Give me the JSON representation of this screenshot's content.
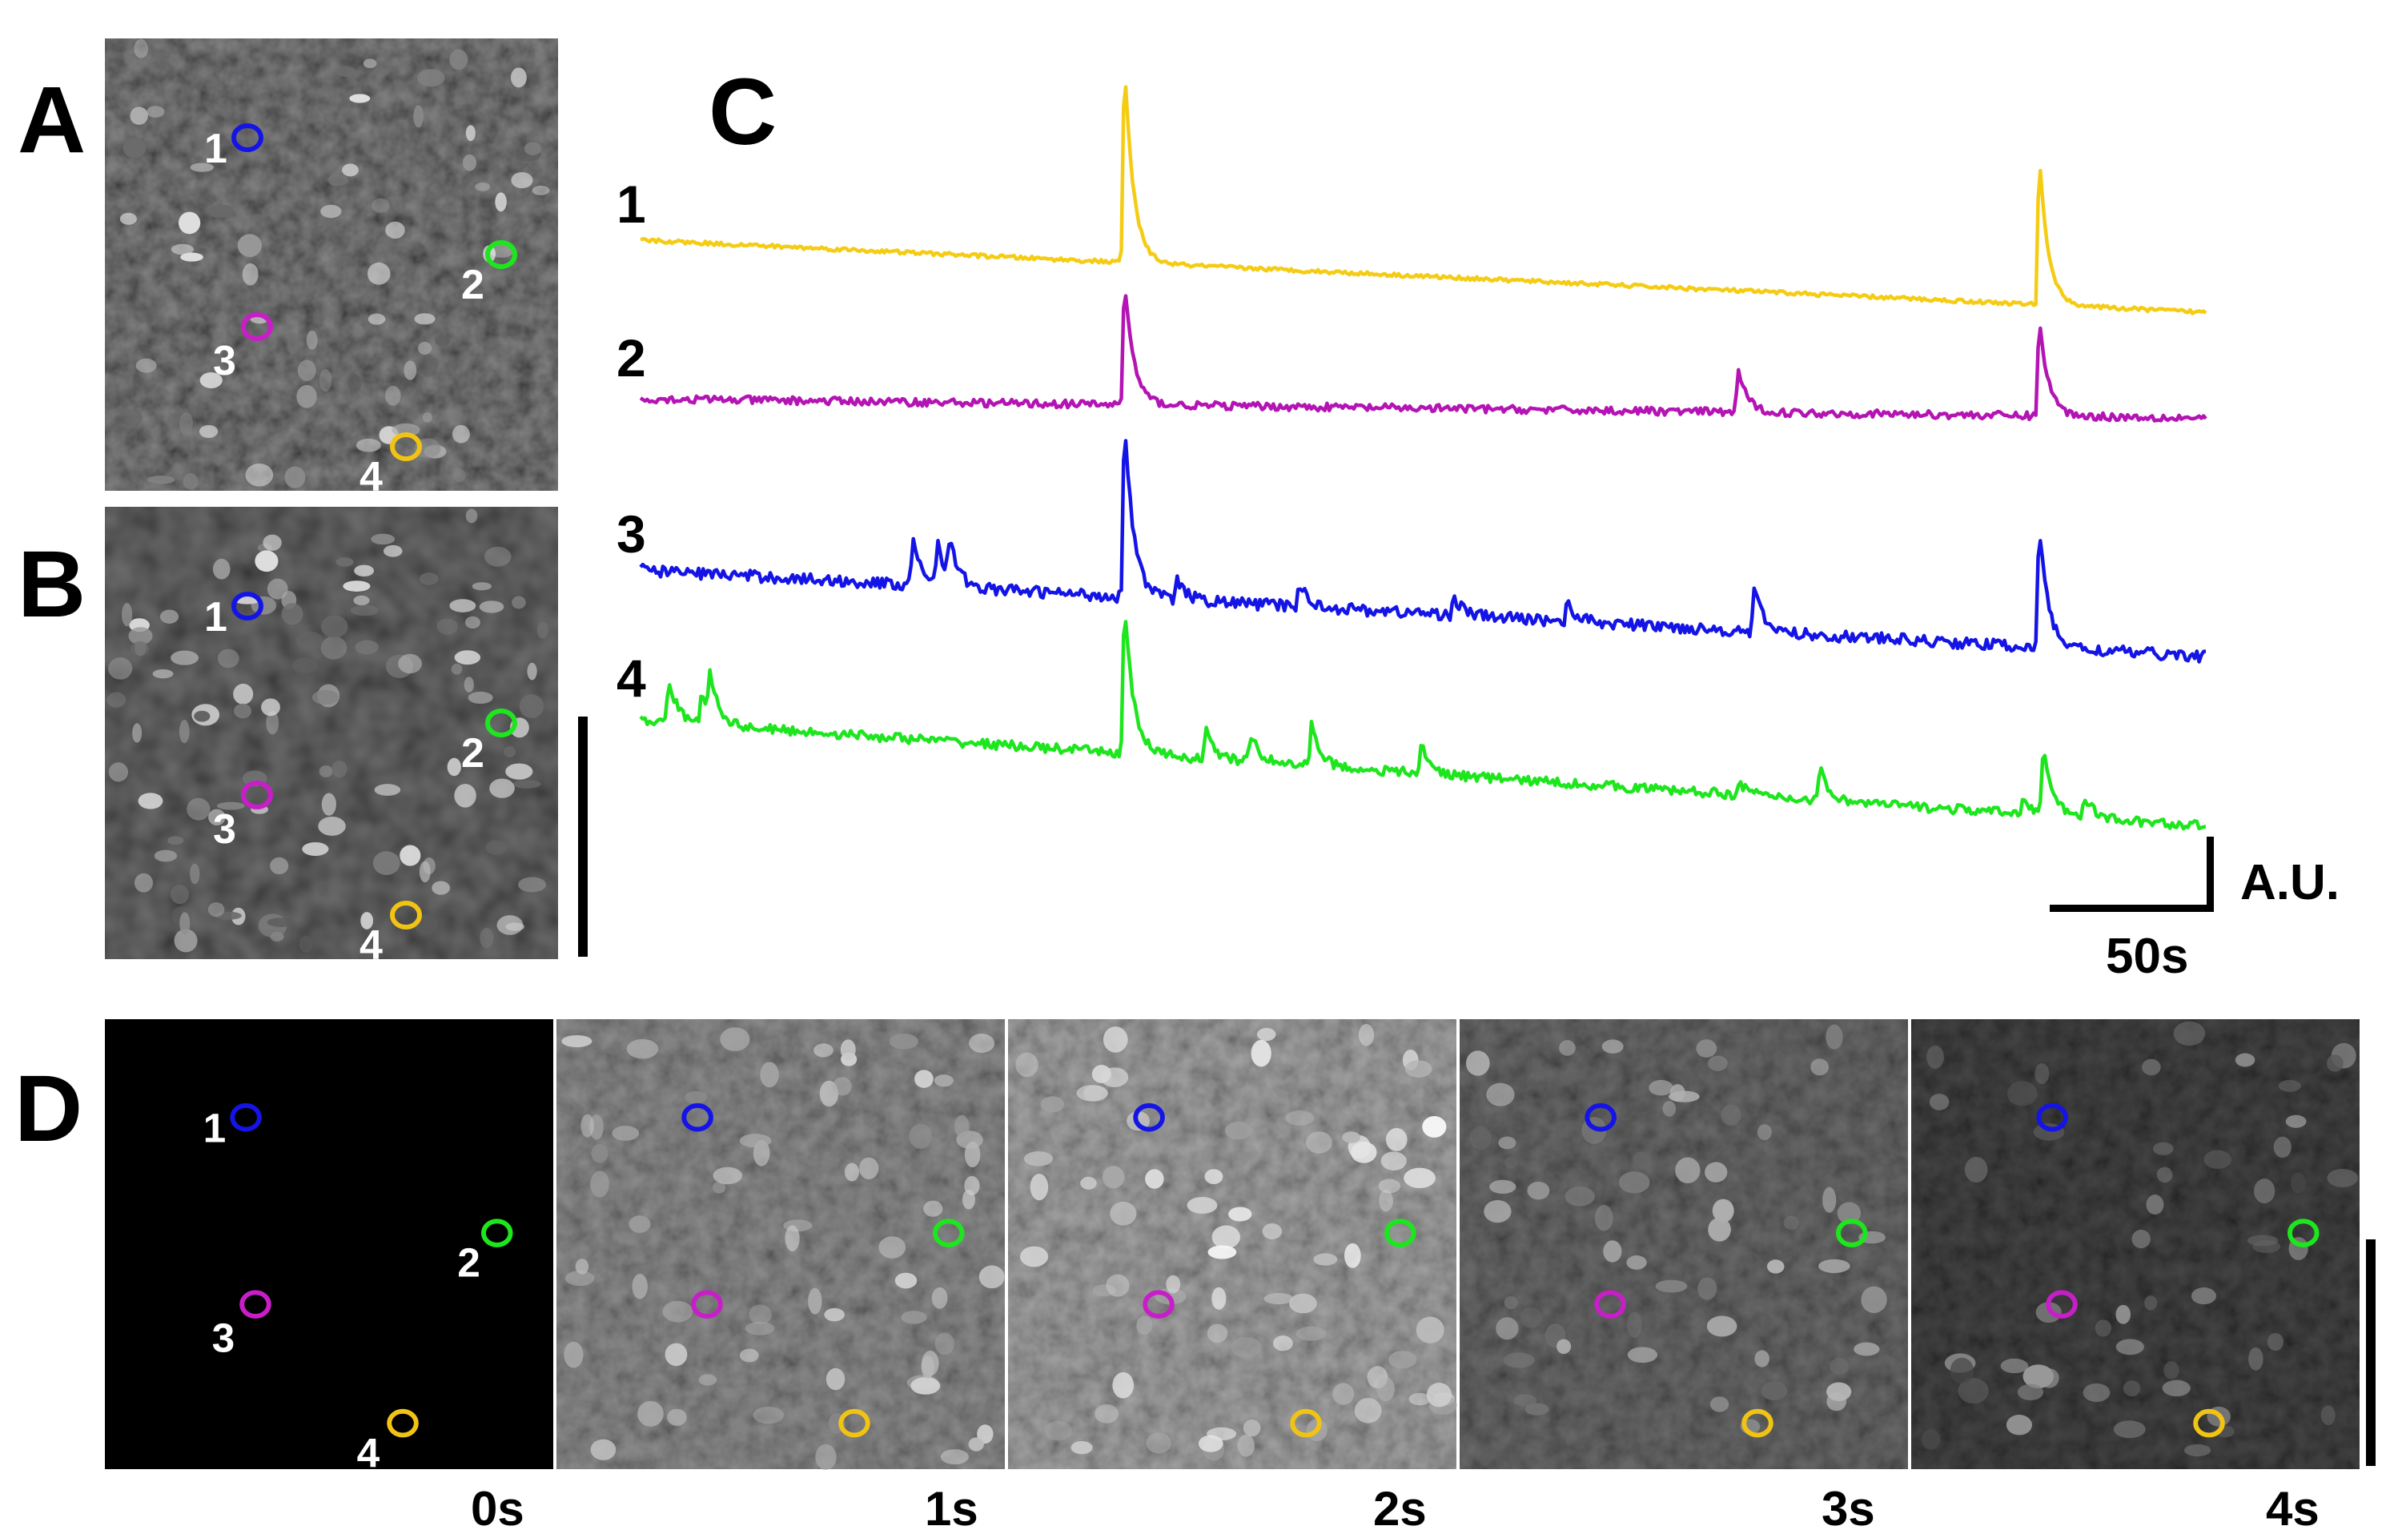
{
  "panels": {
    "a": {
      "letter": "A"
    },
    "b": {
      "letter": "B"
    },
    "c": {
      "letter": "C"
    },
    "d": {
      "letter": "D"
    }
  },
  "roi_labels": [
    "1",
    "2",
    "3",
    "4"
  ],
  "roi_colors": [
    "#1414e6",
    "#1ee61e",
    "#c81ec8",
    "#f0c314"
  ],
  "time_labels": [
    "0s",
    "1s",
    "2s",
    "3s",
    "4s"
  ],
  "frame_brightness": [
    0.0,
    0.55,
    0.7,
    0.35,
    0.15
  ],
  "scale": {
    "x_label": "50s",
    "y_label": "A.U."
  },
  "chart_data": {
    "type": "line",
    "xlabel": "",
    "ylabel": "",
    "x_unit": "s",
    "time_range": [
      0,
      385
    ],
    "series": [
      {
        "name": "1",
        "color": "#f5cc14",
        "start": 0.0,
        "end": -0.75,
        "peaks": [
          [
            119,
            2.15
          ],
          [
            344,
            1.6
          ]
        ],
        "noise": 0.02
      },
      {
        "name": "2",
        "color": "#b414b4",
        "start": 0.0,
        "end": -0.2,
        "peaks": [
          [
            119,
            1.35
          ],
          [
            270,
            0.45
          ],
          [
            344,
            1.05
          ]
        ],
        "noise": 0.04
      },
      {
        "name": "3",
        "color": "#1414e6",
        "start": 0.0,
        "end": -0.9,
        "peaks": [
          [
            67,
            0.55
          ],
          [
            73,
            0.45
          ],
          [
            76,
            0.4
          ],
          [
            119,
            1.95
          ],
          [
            132,
            0.2
          ],
          [
            162,
            0.25
          ],
          [
            200,
            0.2
          ],
          [
            228,
            0.2
          ],
          [
            274,
            0.45
          ],
          [
            344,
            1.3
          ]
        ],
        "noise": 0.06
      },
      {
        "name": "4",
        "color": "#1ee61e",
        "start": 0.0,
        "end": -1.1,
        "peaks": [
          [
            7,
            0.45
          ],
          [
            15,
            0.35
          ],
          [
            17,
            0.45
          ],
          [
            119,
            1.6
          ],
          [
            139,
            0.3
          ],
          [
            150,
            0.3
          ],
          [
            165,
            0.45
          ],
          [
            192,
            0.3
          ],
          [
            270,
            0.15
          ],
          [
            290,
            0.35
          ],
          [
            340,
            0.2
          ],
          [
            345,
            0.7
          ],
          [
            355,
            0.25
          ]
        ],
        "noise": 0.05
      }
    ]
  }
}
